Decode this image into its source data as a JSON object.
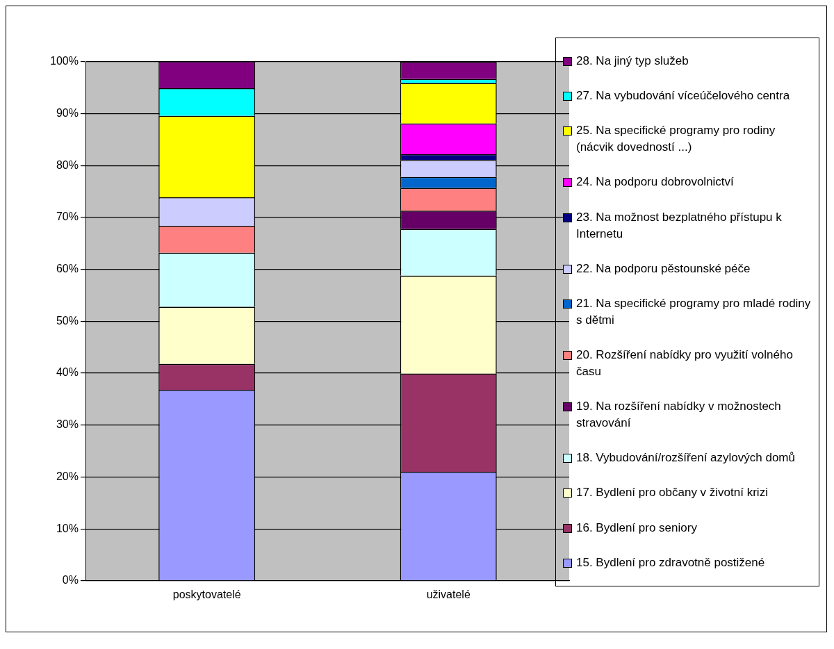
{
  "chart_data": {
    "type": "bar",
    "stacked": true,
    "categories": [
      "poskytovatelé",
      "uživatelé"
    ],
    "series": [
      {
        "name": "15. Bydlení pro zdravotně postižené",
        "color": "#9999ff",
        "values": [
          36.8,
          21.0
        ]
      },
      {
        "name": "16. Bydlení pro seniory",
        "color": "#993366",
        "values": [
          5.0,
          18.9
        ]
      },
      {
        "name": "17.  Bydlení pro občany v životní krizi",
        "color": "#ffffcc",
        "values": [
          11.0,
          18.9
        ]
      },
      {
        "name": "18. Vybudování/rozšíření azylových domů",
        "color": "#ccffff",
        "values": [
          10.4,
          9.0
        ]
      },
      {
        "name": "19. Na rozšíření nabídky v možnostech stravování",
        "color": "#660066",
        "values": [
          0,
          3.5
        ]
      },
      {
        "name": "20. Rozšíření nabídky pro využití volného času",
        "color": "#ff8080",
        "values": [
          5.2,
          4.4
        ]
      },
      {
        "name": "21. Na specifické programy pro mladé rodiny s dětmi",
        "color": "#0066cc",
        "values": [
          0,
          2.1
        ]
      },
      {
        "name": "22. Na podporu pěstounské péče",
        "color": "#ccccff",
        "values": [
          5.5,
          3.3
        ]
      },
      {
        "name": "23. Na možnost bezplatného přístupu k Internetu",
        "color": "#000080",
        "values": [
          0,
          1.1
        ]
      },
      {
        "name": "24. Na podporu dobrovolnictví",
        "color": "#ff00ff",
        "values": [
          0,
          5.9
        ]
      },
      {
        "name": "25. Na specifické programy pro rodiny (nácvik dovedností ...)",
        "color": "#ffff00",
        "values": [
          15.7,
          7.8
        ]
      },
      {
        "name": "27. Na vybudování víceúčelového centra",
        "color": "#00ffff",
        "values": [
          5.3,
          0.8
        ]
      },
      {
        "name": "28. Na jiný typ služeb",
        "color": "#800080",
        "values": [
          5.2,
          3.3
        ]
      }
    ],
    "ylim": [
      0,
      100
    ],
    "yticks": [
      {
        "value": 0,
        "label": "0%"
      },
      {
        "value": 10,
        "label": "10%"
      },
      {
        "value": 20,
        "label": "20%"
      },
      {
        "value": 30,
        "label": "30%"
      },
      {
        "value": 40,
        "label": "40%"
      },
      {
        "value": 50,
        "label": "50%"
      },
      {
        "value": 60,
        "label": "60%"
      },
      {
        "value": 70,
        "label": "70%"
      },
      {
        "value": 80,
        "label": "80%"
      },
      {
        "value": 90,
        "label": "90%"
      },
      {
        "value": 100,
        "label": "100%"
      }
    ],
    "grid": "y",
    "legend": "right"
  }
}
